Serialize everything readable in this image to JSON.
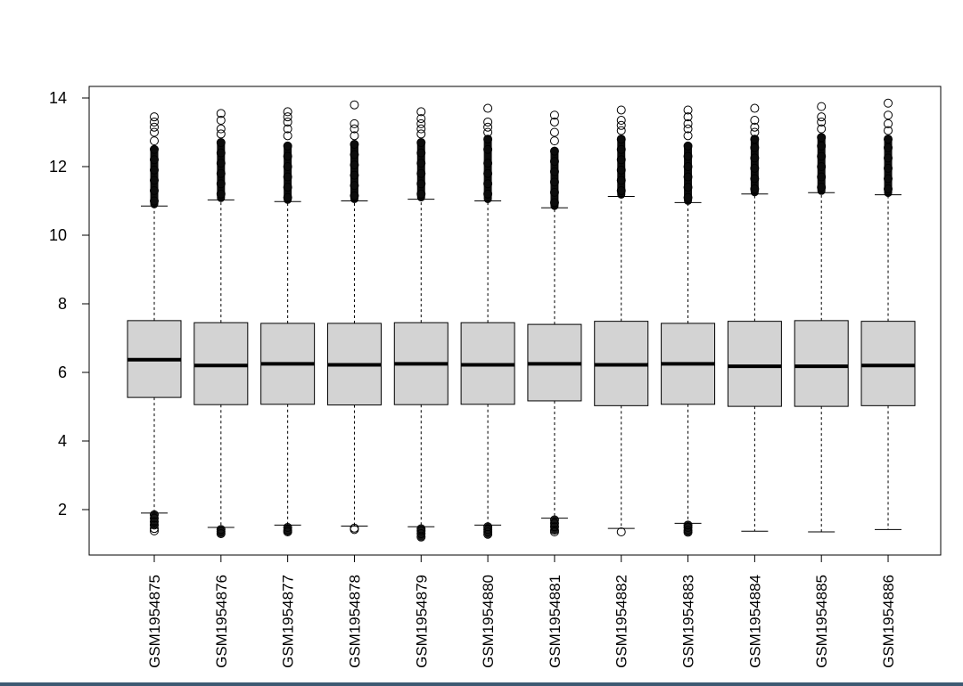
{
  "chart_data": {
    "type": "boxplot",
    "title": "",
    "xlabel": "",
    "ylabel": "",
    "ylim": [
      0.7,
      14.4
    ],
    "yticks": [
      2,
      4,
      6,
      8,
      10,
      12,
      14
    ],
    "ytick_labels": [
      "2",
      "4",
      "6",
      "8",
      "10",
      "12",
      "14"
    ],
    "x_label_rotation": "vertical",
    "grid": false,
    "categories": [
      "GSM1954875",
      "GSM1954876",
      "GSM1954877",
      "GSM1954878",
      "GSM1954879",
      "GSM1954880",
      "GSM1954881",
      "GSM1954882",
      "GSM1954883",
      "GSM1954884",
      "GSM1954885",
      "GSM1954886"
    ],
    "colors": {
      "box_fill": "#d3d3d3",
      "stroke": "#000000"
    },
    "boxes": [
      {
        "name": "GSM1954875",
        "whisker_low": 1.9,
        "q1": 5.27,
        "median": 6.37,
        "q3": 7.51,
        "whisker_high": 10.85,
        "outliers_high": [
          11.0,
          11.3,
          11.6,
          11.9,
          12.2,
          12.5,
          12.75,
          13.0,
          13.15,
          13.3,
          13.45
        ],
        "outliers_low": [
          1.85,
          1.75,
          1.65,
          1.55,
          1.45,
          1.38
        ]
      },
      {
        "name": "GSM1954876",
        "whisker_low": 1.48,
        "q1": 5.06,
        "median": 6.2,
        "q3": 7.45,
        "whisker_high": 11.03,
        "outliers_high": [
          11.2,
          11.5,
          11.8,
          12.1,
          12.4,
          12.7,
          12.95,
          13.1,
          13.35,
          13.55
        ],
        "outliers_low": [
          1.42,
          1.36,
          1.3
        ]
      },
      {
        "name": "GSM1954877",
        "whisker_low": 1.55,
        "q1": 5.07,
        "median": 6.25,
        "q3": 7.43,
        "whisker_high": 10.98,
        "outliers_high": [
          11.1,
          11.4,
          11.7,
          12.0,
          12.3,
          12.6,
          12.9,
          13.1,
          13.3,
          13.45,
          13.6
        ],
        "outliers_low": [
          1.48,
          1.4,
          1.35
        ]
      },
      {
        "name": "GSM1954878",
        "whisker_low": 1.52,
        "q1": 5.05,
        "median": 6.22,
        "q3": 7.43,
        "whisker_high": 11.0,
        "outliers_high": [
          11.15,
          11.45,
          11.75,
          12.05,
          12.35,
          12.65,
          12.9,
          13.1,
          13.25,
          13.8
        ],
        "outliers_low": [
          1.46,
          1.42
        ]
      },
      {
        "name": "GSM1954879",
        "whisker_low": 1.5,
        "q1": 5.06,
        "median": 6.25,
        "q3": 7.45,
        "whisker_high": 11.05,
        "outliers_high": [
          11.2,
          11.5,
          11.8,
          12.1,
          12.4,
          12.7,
          12.95,
          13.1,
          13.25,
          13.4,
          13.6
        ],
        "outliers_low": [
          1.44,
          1.38,
          1.3,
          1.2
        ]
      },
      {
        "name": "GSM1954880",
        "whisker_low": 1.55,
        "q1": 5.07,
        "median": 6.22,
        "q3": 7.45,
        "whisker_high": 11.0,
        "outliers_high": [
          11.2,
          11.5,
          11.8,
          12.1,
          12.5,
          12.8,
          13.0,
          13.15,
          13.3,
          13.7
        ],
        "outliers_low": [
          1.5,
          1.42,
          1.35,
          1.28
        ]
      },
      {
        "name": "GSM1954881",
        "whisker_low": 1.75,
        "q1": 5.17,
        "median": 6.25,
        "q3": 7.4,
        "whisker_high": 10.8,
        "outliers_high": [
          10.95,
          11.25,
          11.55,
          11.85,
          12.15,
          12.45,
          12.75,
          13.0,
          13.3,
          13.5
        ],
        "outliers_low": [
          1.7,
          1.6,
          1.5,
          1.4,
          1.35
        ]
      },
      {
        "name": "GSM1954882",
        "whisker_low": 1.45,
        "q1": 5.03,
        "median": 6.22,
        "q3": 7.49,
        "whisker_high": 11.13,
        "outliers_high": [
          11.3,
          11.6,
          11.9,
          12.2,
          12.5,
          12.8,
          13.05,
          13.2,
          13.35,
          13.65
        ],
        "outliers_low": [
          1.35
        ]
      },
      {
        "name": "GSM1954883",
        "whisker_low": 1.6,
        "q1": 5.07,
        "median": 6.25,
        "q3": 7.43,
        "whisker_high": 10.95,
        "outliers_high": [
          11.1,
          11.4,
          11.7,
          12.0,
          12.3,
          12.6,
          12.9,
          13.1,
          13.25,
          13.45,
          13.65
        ],
        "outliers_low": [
          1.55,
          1.48,
          1.4,
          1.34
        ]
      },
      {
        "name": "GSM1954884",
        "whisker_low": 1.37,
        "q1": 5.01,
        "median": 6.18,
        "q3": 7.49,
        "whisker_high": 11.2,
        "outliers_high": [
          11.35,
          11.65,
          11.95,
          12.25,
          12.55,
          12.8,
          13.0,
          13.15,
          13.35,
          13.7
        ],
        "outliers_low": []
      },
      {
        "name": "GSM1954885",
        "whisker_low": 1.35,
        "q1": 5.01,
        "median": 6.18,
        "q3": 7.51,
        "whisker_high": 11.24,
        "outliers_high": [
          11.4,
          11.7,
          12.0,
          12.3,
          12.6,
          12.85,
          13.1,
          13.3,
          13.45,
          13.75
        ],
        "outliers_low": []
      },
      {
        "name": "GSM1954886",
        "whisker_low": 1.42,
        "q1": 5.03,
        "median": 6.2,
        "q3": 7.49,
        "whisker_high": 11.18,
        "outliers_high": [
          11.35,
          11.65,
          11.95,
          12.25,
          12.55,
          12.8,
          13.05,
          13.25,
          13.5,
          13.85
        ],
        "outliers_low": []
      }
    ]
  }
}
